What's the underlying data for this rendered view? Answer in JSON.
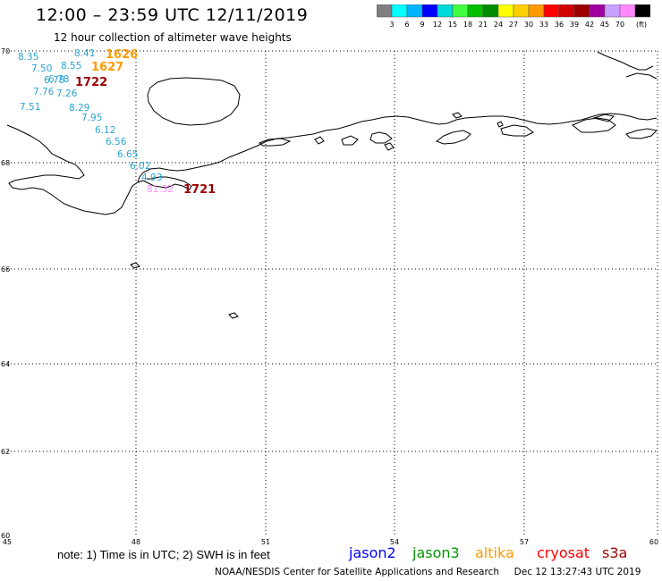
{
  "header": {
    "title": "12:00 – 23:59 UTC 12/11/2019",
    "subtitle": "12 hour collection of altimeter wave heights"
  },
  "scale": {
    "unit": "(ft)",
    "bins": [
      {
        "color": "#7f7f7f",
        "label": ""
      },
      {
        "color": "#00ffff",
        "label": "3"
      },
      {
        "color": "#00b4ff",
        "label": "6"
      },
      {
        "color": "#0000ff",
        "label": "9"
      },
      {
        "color": "#00d9d9",
        "label": "12"
      },
      {
        "color": "#40ff40",
        "label": "15"
      },
      {
        "color": "#00c000",
        "label": "18"
      },
      {
        "color": "#008c00",
        "label": "21"
      },
      {
        "color": "#ffff00",
        "label": "24"
      },
      {
        "color": "#ffd000",
        "label": "27"
      },
      {
        "color": "#ff9900",
        "label": "30"
      },
      {
        "color": "#ff0000",
        "label": "33"
      },
      {
        "color": "#d00000",
        "label": "36"
      },
      {
        "color": "#9c0000",
        "label": "39"
      },
      {
        "color": "#a000a0",
        "label": "42"
      },
      {
        "color": "#c8a0ff",
        "label": "45"
      },
      {
        "color": "#ff88ff",
        "label": "70"
      },
      {
        "color": "#000000",
        "label": ""
      }
    ]
  },
  "map": {
    "lat_labels": [
      "70",
      "68",
      "66",
      "64",
      "62",
      "60"
    ],
    "lon_labels": [
      "45",
      "48",
      "51",
      "54",
      "57",
      "60"
    ],
    "grid_color": "#000000"
  },
  "observations": {
    "blue_values": [
      "8.35",
      "7.50",
      "6.78",
      "7.76",
      "7.51",
      "8.41",
      "8.55",
      "6.78",
      "7.26",
      "8.29",
      "7.95",
      "6.12",
      "6.56",
      "6.65",
      "6.02",
      "4.93"
    ],
    "pink_value": "81.32",
    "times": [
      {
        "text": "1626",
        "color": "#ff9900"
      },
      {
        "text": "1627",
        "color": "#ff9900"
      },
      {
        "text": "1722",
        "color": "#9c0000"
      },
      {
        "text": "1721",
        "color": "#9c0000"
      }
    ]
  },
  "note": "note:  1) Time is in UTC;  2) SWH is in feet",
  "legend": [
    {
      "text": "jason2",
      "color": "#0000ff"
    },
    {
      "text": "jason3",
      "color": "#009900"
    },
    {
      "text": "altika",
      "color": "#ff9900"
    },
    {
      "text": "cryosat",
      "color": "#ff0000"
    },
    {
      "text": "s3a",
      "color": "#9c0000"
    }
  ],
  "footer": "NOAA/NESDIS Center for Satellite Applications and Research     Dec 12 13:27:43 UTC 2019"
}
